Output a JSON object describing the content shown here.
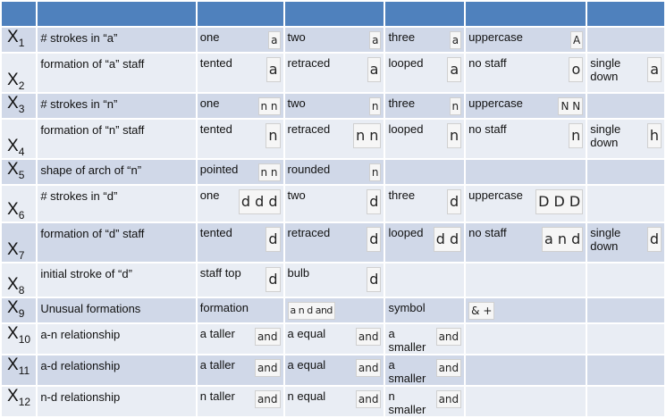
{
  "variables": [
    {
      "sym": "X",
      "sub": "1",
      "feature": "# strokes in “a”",
      "cells": [
        {
          "label": "one",
          "sample": "a"
        },
        {
          "label": "two",
          "sample": "a"
        },
        {
          "label": "three",
          "sample": "a"
        },
        {
          "label": "uppercase",
          "sample": "A"
        },
        {
          "label": "",
          "sample": ""
        }
      ]
    },
    {
      "sym": "X",
      "sub": "2",
      "feature": "formation of “a” staff",
      "cells": [
        {
          "label": "tented",
          "sample": "a"
        },
        {
          "label": "retraced",
          "sample": "a"
        },
        {
          "label": "looped",
          "sample": "a"
        },
        {
          "label": "no staff",
          "sample": "o"
        },
        {
          "label": "single\ndown",
          "sample": "a"
        }
      ]
    },
    {
      "sym": "X",
      "sub": "3",
      "feature": "# strokes in “n”",
      "cells": [
        {
          "label": "one",
          "sample": "n n"
        },
        {
          "label": "two",
          "sample": "n"
        },
        {
          "label": "three",
          "sample": "n"
        },
        {
          "label": "uppercase",
          "sample": "N N"
        },
        {
          "label": "",
          "sample": ""
        }
      ]
    },
    {
      "sym": "X",
      "sub": "4",
      "feature": "formation of “n” staff",
      "cells": [
        {
          "label": "tented",
          "sample": "n"
        },
        {
          "label": "retraced",
          "sample": "n n"
        },
        {
          "label": "looped",
          "sample": "n"
        },
        {
          "label": "no staff",
          "sample": "n"
        },
        {
          "label": "single\ndown",
          "sample": "h"
        }
      ]
    },
    {
      "sym": "X",
      "sub": "5",
      "feature": "shape of arch of “n”",
      "cells": [
        {
          "label": "pointed",
          "sample": "n n"
        },
        {
          "label": "rounded",
          "sample": "n"
        },
        {
          "label": "",
          "sample": ""
        },
        {
          "label": "",
          "sample": ""
        },
        {
          "label": "",
          "sample": ""
        }
      ]
    },
    {
      "sym": "X",
      "sub": "6",
      "feature": "# strokes in “d”",
      "cells": [
        {
          "label": "one",
          "sample": "d d d"
        },
        {
          "label": "two",
          "sample": "d"
        },
        {
          "label": "three",
          "sample": "d"
        },
        {
          "label": "uppercase",
          "sample": "D D D"
        },
        {
          "label": "",
          "sample": ""
        }
      ]
    },
    {
      "sym": "X",
      "sub": "7",
      "feature": "formation of “d” staff",
      "cells": [
        {
          "label": "tented",
          "sample": "d"
        },
        {
          "label": "retraced",
          "sample": "d"
        },
        {
          "label": "looped",
          "sample": "d d"
        },
        {
          "label": "no staff",
          "sample": "a n d"
        },
        {
          "label": "single\ndown",
          "sample": "d"
        }
      ]
    },
    {
      "sym": "X",
      "sub": "8",
      "feature": "initial stroke of “d”",
      "cells": [
        {
          "label": "staff top",
          "sample": "d"
        },
        {
          "label": "bulb",
          "sample": "d"
        },
        {
          "label": "",
          "sample": ""
        },
        {
          "label": "",
          "sample": ""
        },
        {
          "label": "",
          "sample": ""
        }
      ]
    },
    {
      "sym": "X",
      "sub": "9",
      "feature": "Unusual formations",
      "cells": [
        {
          "label": "formation",
          "sample": ""
        },
        {
          "label": "",
          "sample": "a n d   and"
        },
        {
          "label": "symbol",
          "sample": ""
        },
        {
          "label": "",
          "sample": "& +"
        },
        {
          "label": "",
          "sample": ""
        }
      ]
    },
    {
      "sym": "X",
      "sub": "10",
      "feature": "a-n relationship",
      "cells": [
        {
          "label": "a taller",
          "sample": "and"
        },
        {
          "label": "a equal",
          "sample": "and"
        },
        {
          "label": "a smaller",
          "sample": "and"
        },
        {
          "label": "",
          "sample": ""
        },
        {
          "label": "",
          "sample": ""
        }
      ]
    },
    {
      "sym": "X",
      "sub": "11",
      "feature": "a-d relationship",
      "cells": [
        {
          "label": "a taller",
          "sample": "and"
        },
        {
          "label": "a equal",
          "sample": "and"
        },
        {
          "label": "a smaller",
          "sample": "and"
        },
        {
          "label": "",
          "sample": ""
        },
        {
          "label": "",
          "sample": ""
        }
      ]
    },
    {
      "sym": "X",
      "sub": "12",
      "feature": "n-d relationship",
      "cells": [
        {
          "label": "n taller",
          "sample": "and"
        },
        {
          "label": "n equal",
          "sample": "and"
        },
        {
          "label": "n smaller",
          "sample": "and"
        },
        {
          "label": "",
          "sample": ""
        },
        {
          "label": "",
          "sample": ""
        }
      ]
    }
  ]
}
